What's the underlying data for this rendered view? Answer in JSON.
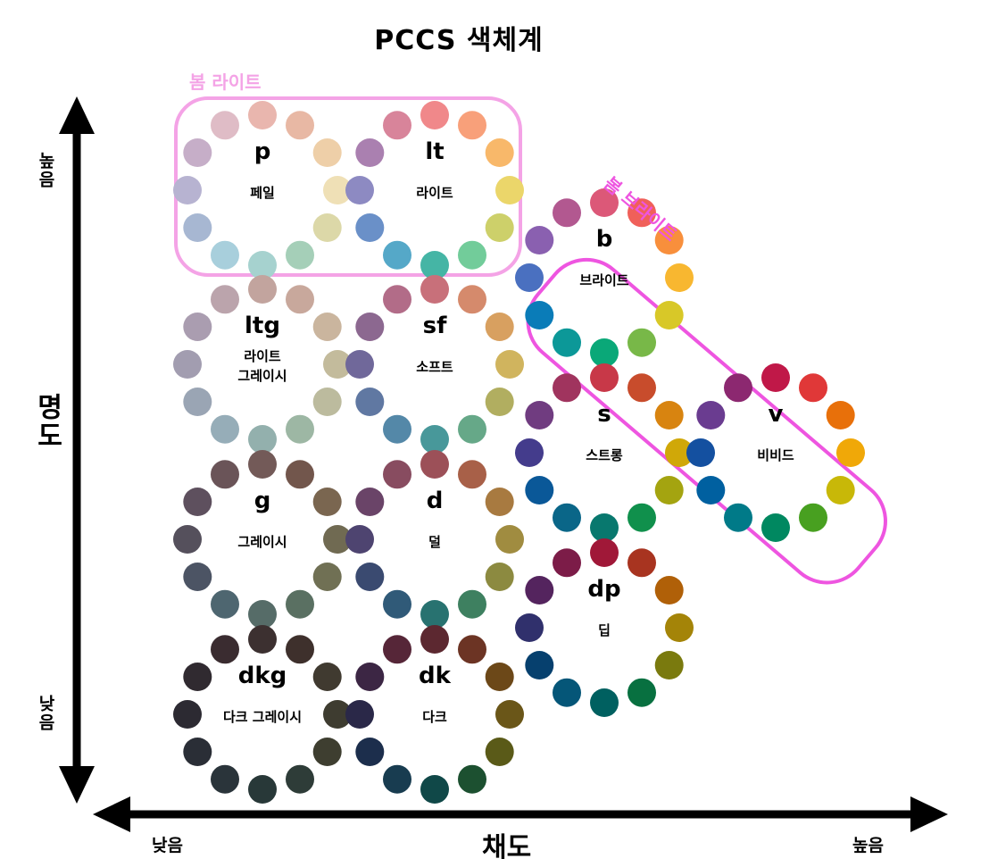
{
  "title": "PCCS  색체계",
  "axes": {
    "y_title": "명도",
    "y_high": "높음",
    "y_low": "낮음",
    "x_title": "채도",
    "x_low": "낮음",
    "x_high": "높음"
  },
  "groups": [
    {
      "label": "봄 라이트",
      "color": "#f4a3e6"
    },
    {
      "label": "봄 브라이트",
      "color": "#ee55e0"
    }
  ],
  "tones": [
    {
      "abbr": "p",
      "name": "페일",
      "colors": [
        "#e9b6ae",
        "#e8b8a4",
        "#eecfa8",
        "#efe0b6",
        "#dcd8a8",
        "#a5cfb8",
        "#a6d2cf",
        "#a8cfdc",
        "#a7b7d2",
        "#b7b3d1",
        "#c6aec8",
        "#dfbcc6"
      ]
    },
    {
      "abbr": "lt",
      "name": "라이트",
      "colors": [
        "#f0888a",
        "#f8a07a",
        "#f8b86a",
        "#ebd66a",
        "#cdd06a",
        "#72cc9a",
        "#45b5a5",
        "#55a8c8",
        "#6a90c8",
        "#8d8ac2",
        "#aa80b0",
        "#d8849a"
      ]
    },
    {
      "abbr": "ltg",
      "name": "라이트\n그레이시",
      "colors": [
        "#c2a49e",
        "#c8a89c",
        "#cab59e",
        "#c3bb9c",
        "#bcbb9e",
        "#9db7a4",
        "#93b0ad",
        "#96adb8",
        "#9aa5b4",
        "#a29db0",
        "#aa9db0",
        "#bba4ac"
      ]
    },
    {
      "abbr": "sf",
      "name": "소프트",
      "colors": [
        "#c8707a",
        "#d58a6c",
        "#d8a060",
        "#d0b45e",
        "#b1ae60",
        "#66a888",
        "#48989a",
        "#5488a8",
        "#6078a2",
        "#70689a",
        "#8c6890",
        "#b26c88"
      ]
    },
    {
      "abbr": "g",
      "name": "그레이시",
      "colors": [
        "#735a58",
        "#72564c",
        "#7a6650",
        "#706a52",
        "#707054",
        "#5a7062",
        "#566c68",
        "#4e6670",
        "#4c5464",
        "#55505c",
        "#5e505e",
        "#6a5458"
      ]
    },
    {
      "abbr": "d",
      "name": "덜",
      "colors": [
        "#9c5058",
        "#a86048",
        "#a87a40",
        "#a08c40",
        "#8c8a40",
        "#3e8060",
        "#287270",
        "#305a78",
        "#3a4a70",
        "#4e4470",
        "#6a4468",
        "#884c60"
      ]
    },
    {
      "abbr": "dkg",
      "name": "다크 그레이시",
      "colors": [
        "#3c3030",
        "#3e302c",
        "#403a30",
        "#3e3c30",
        "#3e3e30",
        "#2e3c38",
        "#283838",
        "#2a343a",
        "#2a2e36",
        "#2c2a32",
        "#302a30",
        "#3a2c30"
      ]
    },
    {
      "abbr": "dk",
      "name": "다크",
      "colors": [
        "#5c2830",
        "#6c3424",
        "#6c4818",
        "#6a5618",
        "#5a5a18",
        "#1c5030",
        "#104848",
        "#183c50",
        "#1c2e4c",
        "#2a2848",
        "#3c2644",
        "#562638"
      ]
    },
    {
      "abbr": "b",
      "name": "브라이트",
      "colors": [
        "#dc5878",
        "#f0605a",
        "#f88f3c",
        "#f8b730",
        "#d8c828",
        "#78b848",
        "#0aa878",
        "#0c9898",
        "#0a7cb8",
        "#4a70c0",
        "#8a60b0",
        "#b25890"
      ]
    },
    {
      "abbr": "s",
      "name": "스트롱",
      "colors": [
        "#c83848",
        "#c84c2c",
        "#d88410",
        "#d0a808",
        "#a4a410",
        "#10904c",
        "#08786e",
        "#0a6688",
        "#0a5898",
        "#443c8c",
        "#703c80",
        "#a0345e"
      ]
    },
    {
      "abbr": "v",
      "name": "비비드",
      "colors": [
        "#c01848",
        "#e03838",
        "#e8700a",
        "#f0a808",
        "#c8b808",
        "#48a020",
        "#008860",
        "#007a88",
        "#0060a0",
        "#1450a0",
        "#6a3c90",
        "#8c2870"
      ]
    },
    {
      "abbr": "dp",
      "name": "딥",
      "colors": [
        "#a01838",
        "#a83420",
        "#b06008",
        "#a48408",
        "#7a7a0e",
        "#087040",
        "#006060",
        "#055678",
        "#06406e",
        "#30306c",
        "#54245e",
        "#7c1c48"
      ]
    }
  ]
}
